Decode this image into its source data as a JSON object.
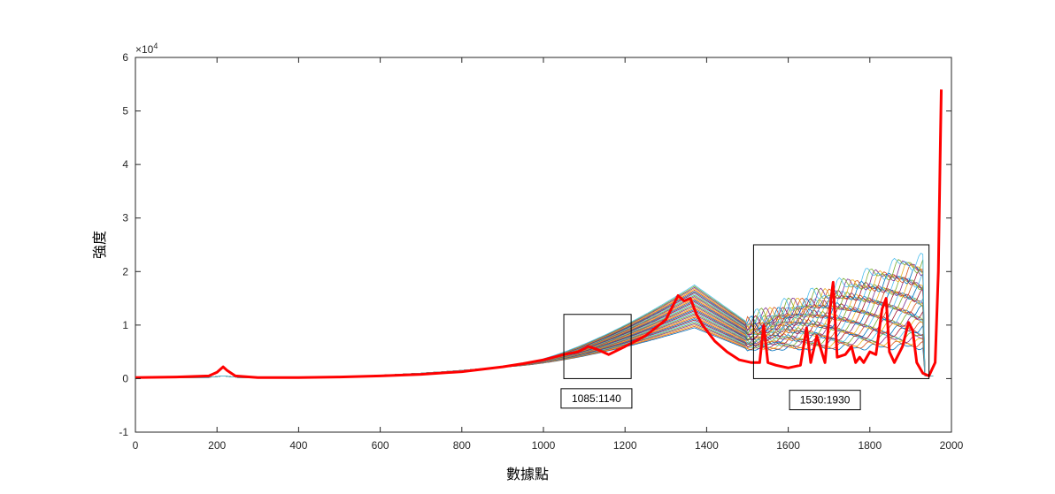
{
  "chart_data": {
    "type": "line",
    "title": "",
    "xlabel": "數據點",
    "ylabel": "強度",
    "y_exponent_label": "×10",
    "y_exponent_power": "4",
    "xlim": [
      0,
      2000
    ],
    "ylim": [
      -1,
      6
    ],
    "x_ticks": [
      0,
      200,
      400,
      600,
      800,
      1000,
      1200,
      1400,
      1600,
      1800,
      2000
    ],
    "y_ticks": [
      -1,
      0,
      1,
      2,
      3,
      4,
      5,
      6
    ],
    "grid": false,
    "legend": "none",
    "annotations": [
      {
        "label": "1085:1140",
        "x_range": [
          1050,
          1215
        ],
        "y_range": [
          0,
          1.2
        ],
        "label_x": 1130,
        "label_y": -0.37
      },
      {
        "label": "1530:1930",
        "x_range": [
          1515,
          1945
        ],
        "y_range": [
          0,
          2.5
        ],
        "label_x": 1690,
        "label_y": -0.4
      }
    ],
    "series": [
      {
        "color": "#ff0000",
        "emphasis": "thick",
        "x": [
          0,
          100,
          180,
          200,
          215,
          225,
          245,
          300,
          400,
          500,
          600,
          700,
          800,
          900,
          950,
          1000,
          1050,
          1085,
          1110,
          1130,
          1145,
          1160,
          1200,
          1250,
          1300,
          1330,
          1345,
          1360,
          1375,
          1390,
          1420,
          1450,
          1480,
          1510,
          1530,
          1540,
          1550,
          1570,
          1600,
          1630,
          1645,
          1655,
          1670,
          1690,
          1705,
          1710,
          1720,
          1740,
          1755,
          1765,
          1775,
          1785,
          1800,
          1815,
          1830,
          1840,
          1848,
          1860,
          1880,
          1895,
          1905,
          1915,
          1930,
          1945,
          1960,
          1968,
          1972,
          1975
        ],
        "values": [
          0.02,
          0.03,
          0.05,
          0.12,
          0.22,
          0.15,
          0.05,
          0.02,
          0.02,
          0.03,
          0.05,
          0.08,
          0.13,
          0.22,
          0.28,
          0.35,
          0.45,
          0.5,
          0.6,
          0.55,
          0.5,
          0.45,
          0.6,
          0.8,
          1.1,
          1.55,
          1.45,
          1.5,
          1.2,
          1.0,
          0.7,
          0.5,
          0.35,
          0.3,
          0.3,
          1.0,
          0.3,
          0.25,
          0.2,
          0.25,
          0.95,
          0.3,
          0.8,
          0.3,
          1.5,
          1.8,
          0.4,
          0.45,
          0.6,
          0.3,
          0.4,
          0.3,
          0.5,
          0.45,
          1.3,
          1.5,
          0.5,
          0.3,
          0.6,
          1.05,
          0.9,
          0.3,
          0.1,
          0.05,
          0.3,
          2.0,
          4.0,
          5.4
        ]
      }
    ]
  }
}
